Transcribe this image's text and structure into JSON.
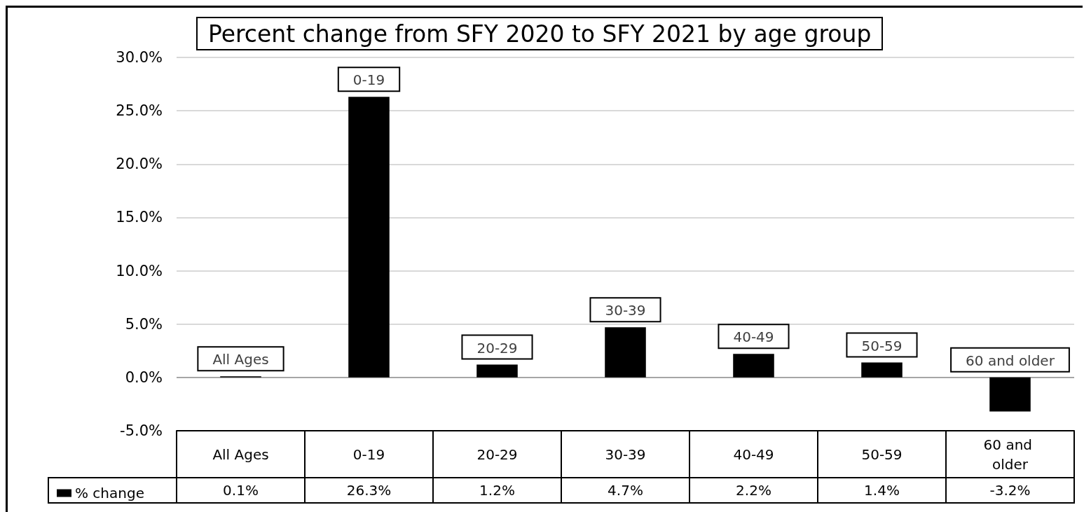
{
  "chart_data": {
    "type": "bar",
    "title": "Percent change from SFY 2020 to SFY 2021 by age group",
    "categories": [
      "All Ages",
      "0-19",
      "20-29",
      "30-39",
      "40-49",
      "50-59",
      "60 and older"
    ],
    "series": [
      {
        "name": "% change",
        "color": "#000000",
        "values": [
          0.1,
          26.3,
          1.2,
          4.7,
          2.2,
          1.4,
          -3.2
        ],
        "value_labels": [
          "0.1%",
          "26.3%",
          "1.2%",
          "4.7%",
          "2.2%",
          "1.4%",
          "-3.2%"
        ]
      }
    ],
    "ylim": [
      -5,
      30
    ],
    "yticks": [
      {
        "value": -5,
        "label": "-5.0%"
      },
      {
        "value": 0,
        "label": "0.0%"
      },
      {
        "value": 5,
        "label": "5.0%"
      },
      {
        "value": 10,
        "label": "10.0%"
      },
      {
        "value": 15,
        "label": "15.0%"
      },
      {
        "value": 20,
        "label": "20.0%"
      },
      {
        "value": 25,
        "label": "25.0%"
      },
      {
        "value": 30,
        "label": "30.0%"
      }
    ],
    "grid": "y",
    "legend": "bottom left",
    "annotations": [
      {
        "text": "All Ages",
        "x": "All Ages",
        "y": 0.1
      },
      {
        "text": "0-19",
        "x": "0-19",
        "y": 26.3
      },
      {
        "text": "20-29",
        "x": "20-29",
        "y": 1.2
      },
      {
        "text": "30-39",
        "x": "30-39",
        "y": 4.7
      },
      {
        "text": "40-49",
        "x": "40-49",
        "y": 2.2
      },
      {
        "text": "50-59",
        "x": "50-59",
        "y": 1.4
      },
      {
        "text": "60 and older",
        "x": "60 and older",
        "y": 0
      }
    ]
  }
}
